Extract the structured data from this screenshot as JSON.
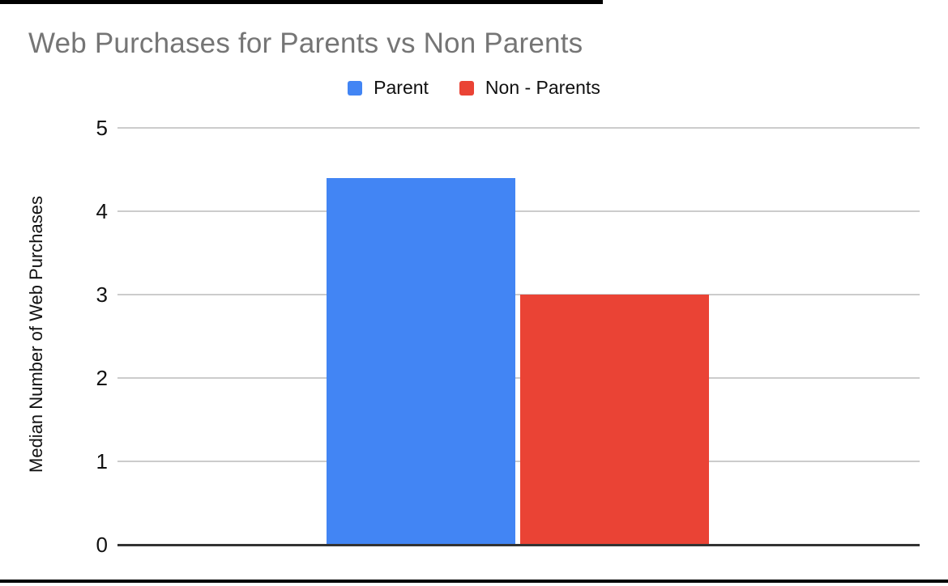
{
  "decorations": {
    "top_bar_color": "#000000",
    "bottom_bar_color": "#000000"
  },
  "chart_data": {
    "type": "bar",
    "title": "Web Purchases for Parents vs Non Parents",
    "xlabel": "",
    "ylabel": "Median Number of Web Purchases",
    "categories": [
      ""
    ],
    "series": [
      {
        "name": "Parent",
        "color": "#4285F4",
        "values": [
          4.4
        ]
      },
      {
        "name": "Non - Parents",
        "color": "#EA4335",
        "values": [
          3
        ]
      }
    ],
    "yticks": [
      0,
      1,
      2,
      3,
      4,
      5
    ],
    "ylim": [
      0,
      5
    ],
    "grid": true,
    "legend_position": "top-center",
    "title_color": "#757575",
    "gridline_color": "#cccccc",
    "axis_line_color": "#333333",
    "tick_label_color": "#111111"
  }
}
